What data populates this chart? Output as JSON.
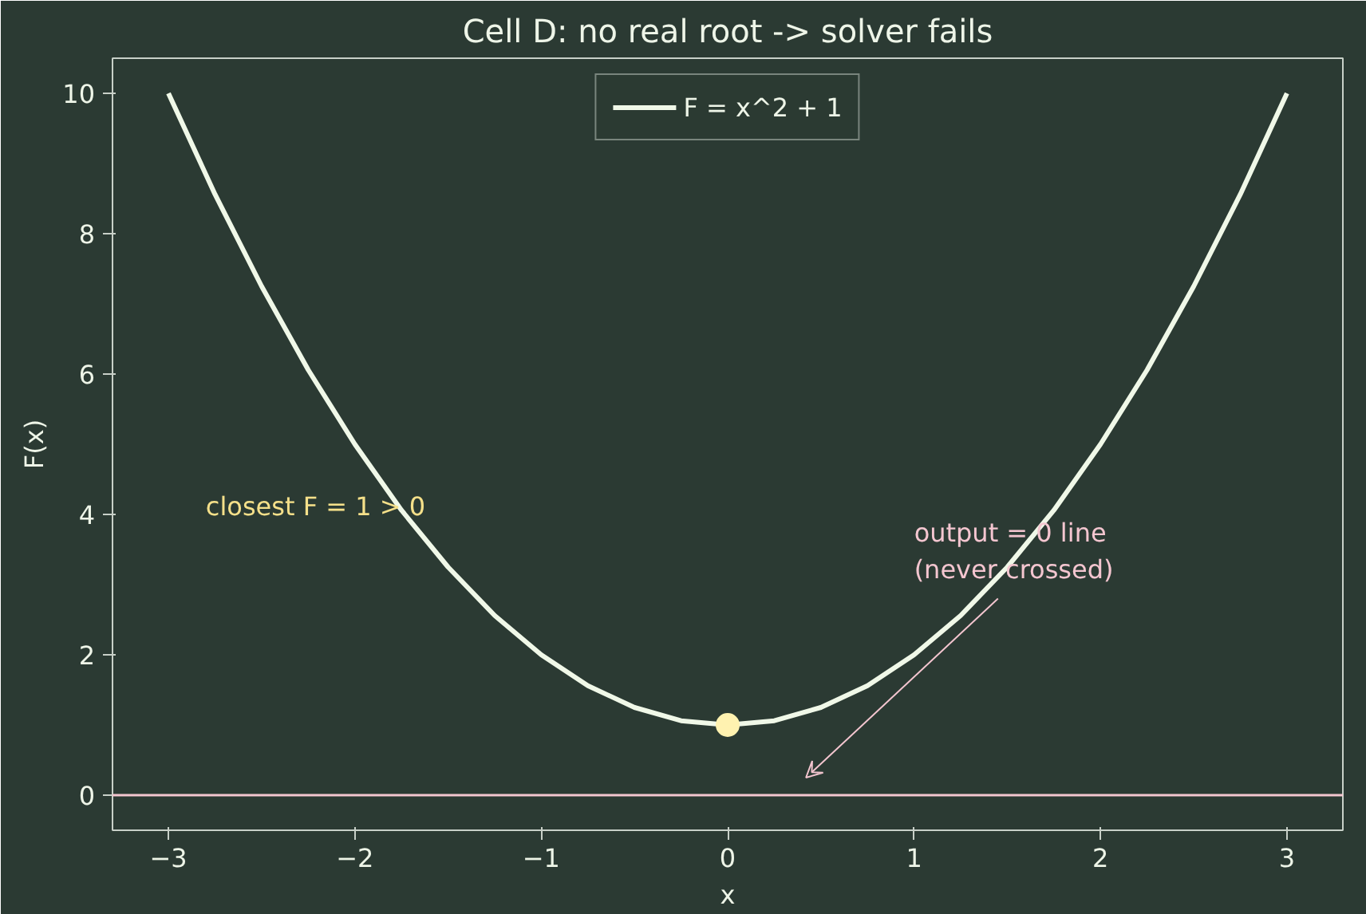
{
  "chart_data": {
    "type": "line",
    "title": "Cell D: no real root -> solver fails",
    "xlabel": "x",
    "ylabel": "F(x)",
    "xlim": [
      -3.3,
      3.3
    ],
    "ylim": [
      -0.5,
      10.5
    ],
    "xticks": [
      {
        "value": -3,
        "label": "−3"
      },
      {
        "value": -2,
        "label": "−2"
      },
      {
        "value": -1,
        "label": "−1"
      },
      0,
      1,
      2,
      3
    ],
    "yticks": [
      0,
      2,
      4,
      6,
      8,
      10
    ],
    "grid": false,
    "legend": "top",
    "marker": "none",
    "line_style": "solid",
    "series": [
      {
        "name": "F = x^2 + 1",
        "color": "#f0f8e8",
        "x": [
          -3,
          -2.75,
          -2.5,
          -2.25,
          -2,
          -1.75,
          -1.5,
          -1.25,
          -1,
          -0.75,
          -0.5,
          -0.25,
          0,
          0.25,
          0.5,
          0.75,
          1,
          1.25,
          1.5,
          1.75,
          2,
          2.25,
          2.5,
          2.75,
          3
        ],
        "values": [
          10,
          8.56,
          7.25,
          6.06,
          5,
          4.06,
          3.25,
          2.56,
          2,
          1.56,
          1.25,
          1.06,
          1,
          1.06,
          1.25,
          1.56,
          2,
          2.56,
          3.25,
          4.06,
          5,
          6.06,
          7.25,
          8.56,
          10
        ]
      },
      {
        "type": "scatter",
        "marker": "circle",
        "color": "#fff2b0",
        "x": [
          0
        ],
        "values": [
          1
        ]
      }
    ],
    "ref_lines": [
      {
        "axis": "y",
        "value": 0,
        "color": "#f4c6d0",
        "line_style": "solid"
      }
    ],
    "annotations": [
      "closest F = 1 > 0",
      "output = 0 line\n(never crossed)"
    ]
  }
}
